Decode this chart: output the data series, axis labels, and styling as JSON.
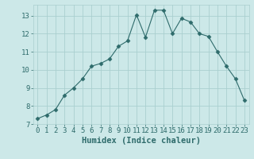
{
  "x": [
    0,
    1,
    2,
    3,
    4,
    5,
    6,
    7,
    8,
    9,
    10,
    11,
    12,
    13,
    14,
    15,
    16,
    17,
    18,
    19,
    20,
    21,
    22,
    23
  ],
  "y": [
    7.3,
    7.5,
    7.8,
    8.6,
    9.0,
    9.5,
    10.2,
    10.35,
    10.6,
    11.3,
    11.6,
    13.05,
    11.8,
    13.3,
    13.3,
    12.0,
    12.85,
    12.65,
    12.0,
    11.85,
    11.0,
    10.2,
    9.5,
    8.3
  ],
  "line_color": "#2e6b6b",
  "marker": "D",
  "marker_size": 2.5,
  "bg_color": "#cce8e8",
  "grid_color": "#aacfcf",
  "xlabel": "Humidex (Indice chaleur)",
  "ylim": [
    7,
    13.6
  ],
  "xlim": [
    -0.5,
    23.5
  ],
  "yticks": [
    7,
    8,
    9,
    10,
    11,
    12,
    13
  ],
  "xticks": [
    0,
    1,
    2,
    3,
    4,
    5,
    6,
    7,
    8,
    9,
    10,
    11,
    12,
    13,
    14,
    15,
    16,
    17,
    18,
    19,
    20,
    21,
    22,
    23
  ],
  "line_color_dark": "#2e6b6b",
  "label_fontsize": 7.5,
  "tick_fontsize": 6.5
}
